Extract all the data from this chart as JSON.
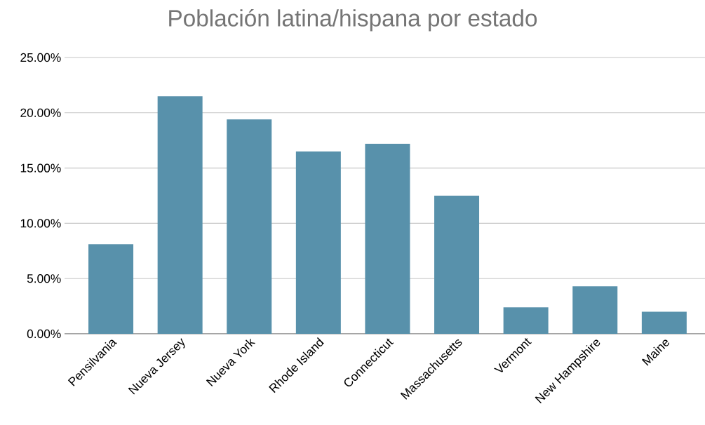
{
  "chart_data": {
    "type": "bar",
    "title": "Población latina/hispana por estado",
    "categories": [
      "Pensilvania",
      "Nueva Jersey",
      "Nueva York",
      "Rhode Island",
      "Connecticut",
      "Massachusetts",
      "Vermont",
      "New Hampshire",
      "Maine"
    ],
    "values": [
      8.1,
      21.5,
      19.4,
      16.5,
      17.2,
      12.5,
      2.4,
      4.3,
      2.0
    ],
    "color": "#5891ab",
    "ylim": [
      0,
      25
    ],
    "yticks": [
      {
        "value": 0,
        "label": "0.00%"
      },
      {
        "value": 5,
        "label": "5.00%"
      },
      {
        "value": 10,
        "label": "10.00%"
      },
      {
        "value": 15,
        "label": "15.00%"
      },
      {
        "value": 20,
        "label": "20.00%"
      },
      {
        "value": 25,
        "label": "25.00%"
      }
    ],
    "grid": "y"
  }
}
